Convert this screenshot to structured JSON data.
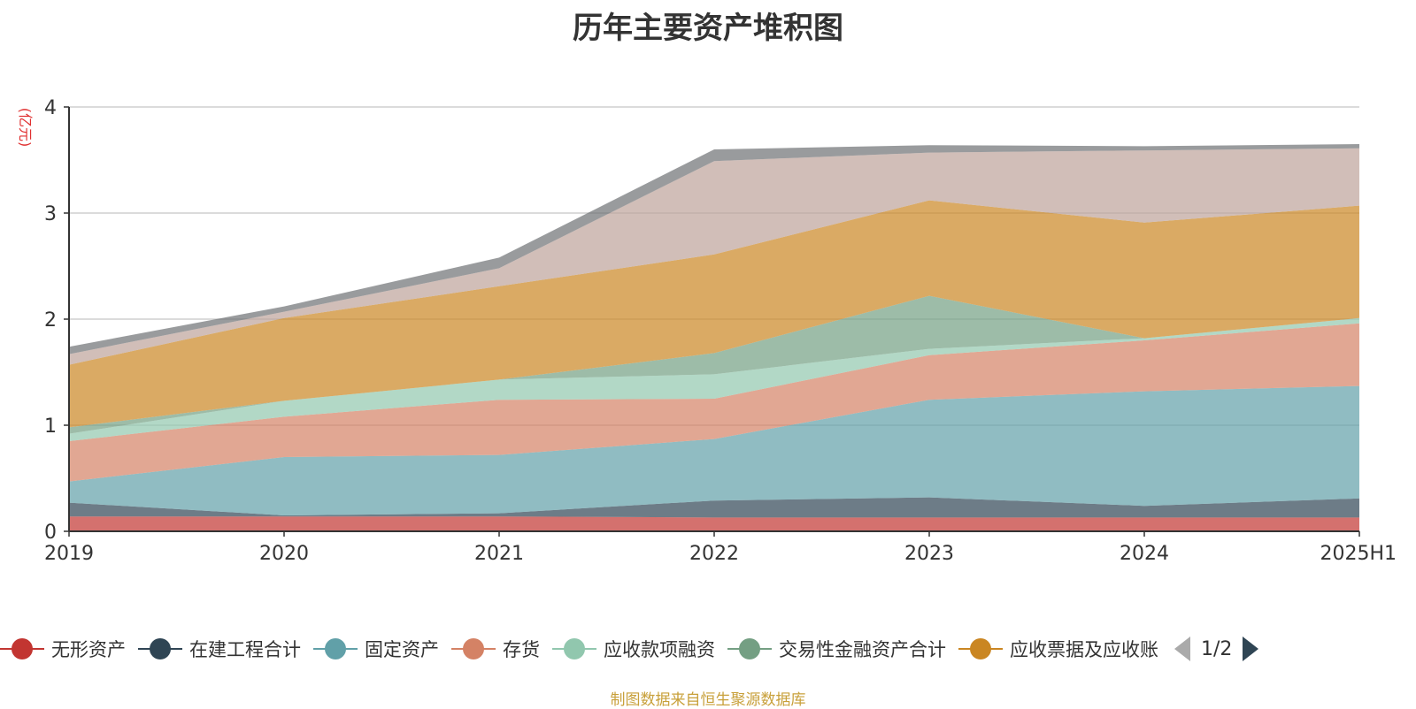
{
  "chart_data": {
    "type": "area",
    "stacked": true,
    "title": "历年主要资产堆积图",
    "unit_label": "(亿元)",
    "x": [
      "2019",
      "2020",
      "2021",
      "2022",
      "2023",
      "2024",
      "2025H1"
    ],
    "ylim": [
      0,
      4
    ],
    "yticks": [
      "0",
      "1",
      "2",
      "3",
      "4"
    ],
    "grid": true,
    "legend_position": "bottom",
    "series": [
      {
        "name": "无形资产",
        "color": "#c23531",
        "values": [
          0.14,
          0.14,
          0.14,
          0.13,
          0.13,
          0.13,
          0.13
        ]
      },
      {
        "name": "在建工程合计",
        "color": "#2f4554",
        "values": [
          0.13,
          0.01,
          0.03,
          0.16,
          0.19,
          0.11,
          0.18
        ]
      },
      {
        "name": "固定资产",
        "color": "#61a0a8",
        "values": [
          0.2,
          0.55,
          0.55,
          0.58,
          0.92,
          1.08,
          1.06
        ]
      },
      {
        "name": "存货",
        "color": "#d48265",
        "values": [
          0.38,
          0.38,
          0.52,
          0.38,
          0.42,
          0.48,
          0.59
        ]
      },
      {
        "name": "应收款项融资",
        "color": "#91c7ae",
        "values": [
          0.07,
          0.15,
          0.19,
          0.23,
          0.06,
          0.02,
          0.05
        ]
      },
      {
        "name": "交易性金融资产合计",
        "color": "#749f83",
        "values": [
          0.06,
          0.0,
          0.0,
          0.2,
          0.5,
          0.0,
          0.0
        ]
      },
      {
        "name": "应收票据及应收账",
        "color": "#ca8622",
        "values": [
          0.59,
          0.78,
          0.88,
          0.93,
          0.9,
          1.09,
          1.06
        ]
      },
      {
        "name": "",
        "color": "#bda29a",
        "values": [
          0.1,
          0.06,
          0.17,
          0.88,
          0.45,
          0.68,
          0.54
        ]
      },
      {
        "name": "",
        "color": "#6e7074",
        "values": [
          0.07,
          0.05,
          0.1,
          0.11,
          0.07,
          0.04,
          0.04
        ]
      }
    ]
  },
  "legend": {
    "page_text": "1/2"
  },
  "source_note": "制图数据来自恒生聚源数据库"
}
